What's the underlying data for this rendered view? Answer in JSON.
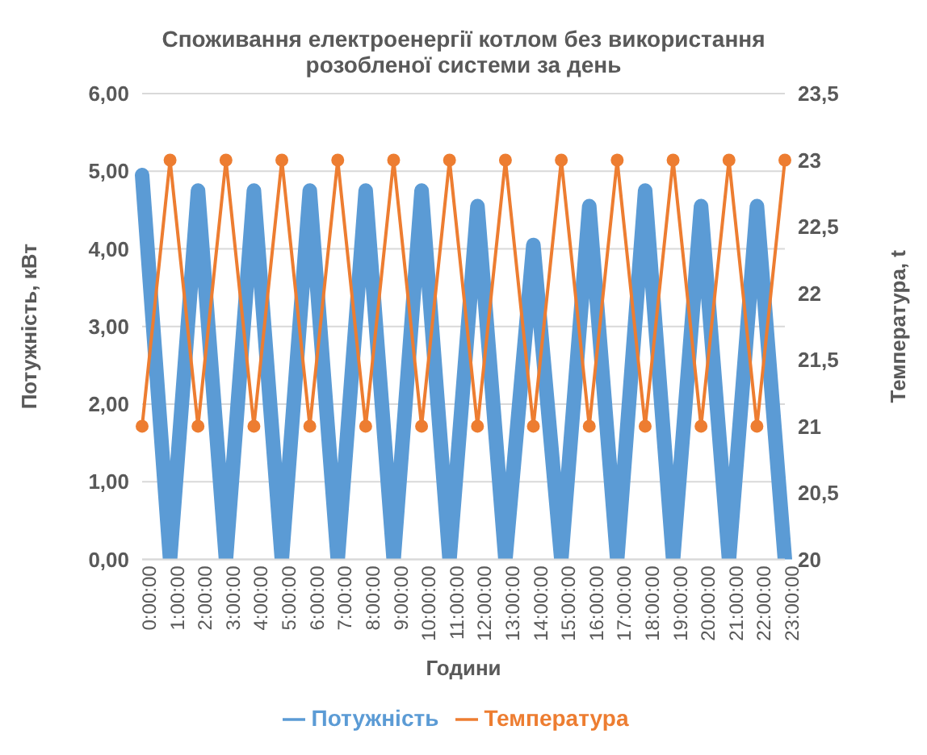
{
  "chart_data": {
    "type": "line",
    "title": "Споживання електроенергії котлом без використання розобленої системи за день",
    "xlabel": "Години",
    "ylabel": "Потужність, кВт",
    "y2label": "Температура, t",
    "categories": [
      "0:00:00",
      "1:00:00",
      "2:00:00",
      "3:00:00",
      "4:00:00",
      "5:00:00",
      "6:00:00",
      "7:00:00",
      "8:00:00",
      "9:00:00",
      "10:00:00",
      "11:00:00",
      "12:00:00",
      "13:00:00",
      "14:00:00",
      "15:00:00",
      "16:00:00",
      "17:00:00",
      "18:00:00",
      "19:00:00",
      "20:00:00",
      "21:00:00",
      "22:00:00",
      "23:00:00"
    ],
    "series": [
      {
        "name": "Потужність",
        "color": "#5b9bd5",
        "marker": "none",
        "values": [
          4.95,
          0,
          4.75,
          0,
          4.75,
          0,
          4.75,
          0,
          4.75,
          0,
          4.75,
          0,
          4.55,
          0,
          4.05,
          0,
          4.55,
          0,
          4.75,
          0,
          4.55,
          0,
          4.55,
          0
        ]
      },
      {
        "name": "Температура",
        "color": "#ed7d31",
        "marker": "circle",
        "axis": "y2",
        "values": [
          21,
          23,
          21,
          23,
          21,
          23,
          21,
          23,
          21,
          23,
          21,
          23,
          21,
          23,
          21,
          23,
          21,
          23,
          21,
          23,
          21,
          23,
          21,
          23
        ]
      }
    ],
    "ylim": [
      0,
      6
    ],
    "yticks": [
      {
        "value": 0,
        "label": "0,00"
      },
      {
        "value": 1,
        "label": "1,00"
      },
      {
        "value": 2,
        "label": "2,00"
      },
      {
        "value": 3,
        "label": "3,00"
      },
      {
        "value": 4,
        "label": "4,00"
      },
      {
        "value": 5,
        "label": "5,00"
      },
      {
        "value": 6,
        "label": "6,00"
      }
    ],
    "y2lim": [
      20,
      23.5
    ],
    "y2ticks": [
      20,
      {
        "value": 20.5,
        "label": "20,5"
      },
      21,
      {
        "value": 21.5,
        "label": "21,5"
      },
      22,
      {
        "value": 22.5,
        "label": "22,5"
      },
      23,
      {
        "value": 23.5,
        "label": "23,5"
      }
    ],
    "grid": "y",
    "legend": "bottom"
  }
}
